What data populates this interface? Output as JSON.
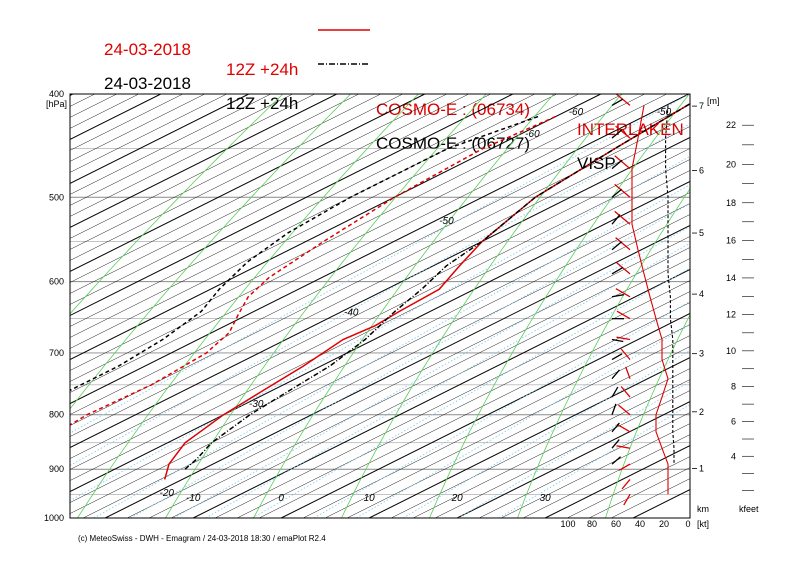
{
  "titles": {
    "red": {
      "date": "24-03-2018",
      "run": "12Z +24h",
      "model": "COSMO-E : (06734)",
      "station": "INTERLAKEN",
      "color": "#e00000",
      "style": "solid"
    },
    "black": {
      "date": "24-03-2018",
      "run": "12Z +24h",
      "model": "COSMO-E : (06727)",
      "station": "VISP",
      "color": "#000000",
      "style": "dash-dot"
    }
  },
  "credit": "(c) MeteoSwiss - DWH - Emagram / 24-03-2018  18:30 / emaPlot R2.4",
  "chart_data": {
    "type": "line",
    "chart_kind": "emagram",
    "y_axis": {
      "quantity": "pressure",
      "unit_label": "[hPa]",
      "scale": "log",
      "range": [
        1000,
        400
      ],
      "ticks": [
        400,
        500,
        600,
        700,
        800,
        900,
        1000
      ],
      "tick_labels": [
        "400",
        "500",
        "600",
        "700",
        "800",
        "900",
        "1000"
      ]
    },
    "x_axis": {
      "quantity": "temperature",
      "range": [
        -24,
        22
      ],
      "bottom_labels": [
        -10,
        0,
        10,
        20,
        30
      ]
    },
    "isotherm_labels": [
      {
        "t": -60,
        "p": 415
      },
      {
        "t": -50,
        "p": 415
      },
      {
        "t": -40,
        "p": 415
      },
      {
        "t": -30,
        "p": 415
      },
      {
        "t": -20,
        "p": 415
      },
      {
        "t": -60,
        "p": 435
      },
      {
        "t": -50,
        "p": 525
      },
      {
        "t": -40,
        "p": 640
      },
      {
        "t": -30,
        "p": 780
      },
      {
        "t": -20,
        "p": 945
      },
      {
        "t": 10,
        "p": 475
      },
      {
        "t": 20,
        "p": 590
      },
      {
        "t": 30,
        "p": 690
      }
    ],
    "height_km_axis": {
      "ticks": [
        1,
        2,
        3,
        4,
        5,
        6,
        7
      ],
      "label": "km",
      "unit": "[m]"
    },
    "height_kfeet_axis": {
      "ticks": [
        4,
        6,
        8,
        10,
        12,
        14,
        16,
        18,
        20,
        22
      ],
      "label": "kfeet"
    },
    "wind_speed_axis": {
      "ticks": [
        100,
        80,
        60,
        40,
        20,
        0
      ],
      "unit": "[kt]"
    },
    "series": [
      {
        "name": "INTERLAKEN",
        "role": "temperature",
        "color": "#e00000",
        "style": "solid",
        "points": [
          [
            -48,
            400
          ],
          [
            -46,
            450
          ],
          [
            -44,
            500
          ],
          [
            -40,
            550
          ],
          [
            -37,
            580
          ],
          [
            -34,
            610
          ],
          [
            -33.5,
            640
          ],
          [
            -33,
            660
          ],
          [
            -33.5,
            680
          ],
          [
            -32,
            720
          ],
          [
            -31,
            760
          ],
          [
            -30,
            800
          ],
          [
            -28,
            850
          ],
          [
            -25,
            890
          ],
          [
            -22,
            920
          ]
        ]
      },
      {
        "name": "INTERLAKEN",
        "role": "dewpoint",
        "color": "#e00000",
        "style": "dashed",
        "points": [
          [
            -60,
            420
          ],
          [
            -61,
            450
          ],
          [
            -60,
            500
          ],
          [
            -58,
            550
          ],
          [
            -56,
            595
          ],
          [
            -54,
            620
          ],
          [
            -51,
            645
          ],
          [
            -48,
            670
          ],
          [
            -46,
            700
          ],
          [
            -45,
            750
          ],
          [
            -45.5,
            800
          ],
          [
            -44.5,
            850
          ],
          [
            -44,
            880
          ],
          [
            -43,
            900
          ]
        ]
      },
      {
        "name": "VISP",
        "role": "temperature",
        "color": "#000000",
        "style": "dash-dot",
        "points": [
          [
            -48,
            400
          ],
          [
            -46,
            450
          ],
          [
            -44,
            500
          ],
          [
            -40,
            550
          ],
          [
            -38.5,
            580
          ],
          [
            -36,
            610
          ],
          [
            -34,
            640
          ],
          [
            -31,
            680
          ],
          [
            -29,
            720
          ],
          [
            -28,
            760
          ],
          [
            -27,
            800
          ],
          [
            -25,
            850
          ],
          [
            -23,
            880
          ],
          [
            -22,
            900
          ]
        ]
      },
      {
        "name": "VISP",
        "role": "dewpoint",
        "color": "#000000",
        "style": "dashed",
        "points": [
          [
            -62,
            420
          ],
          [
            -65,
            450
          ],
          [
            -65,
            500
          ],
          [
            -64,
            540
          ],
          [
            -62,
            575
          ],
          [
            -59,
            610
          ],
          [
            -56,
            640
          ],
          [
            -54,
            680
          ],
          [
            -53,
            720
          ],
          [
            -53,
            760
          ],
          [
            -54,
            800
          ],
          [
            -51,
            840
          ],
          [
            -50,
            870
          ],
          [
            -49,
            900
          ]
        ]
      }
    ],
    "wind_profiles": [
      {
        "name": "INTERLAKEN",
        "color": "#e00000",
        "points": [
          {
            "p": 410,
            "dir": 310,
            "kt": 30
          },
          {
            "p": 440,
            "dir": 310,
            "kt": 35
          },
          {
            "p": 470,
            "dir": 310,
            "kt": 40
          },
          {
            "p": 500,
            "dir": 310,
            "kt": 40
          },
          {
            "p": 530,
            "dir": 310,
            "kt": 40
          },
          {
            "p": 560,
            "dir": 310,
            "kt": 35
          },
          {
            "p": 590,
            "dir": 310,
            "kt": 30
          },
          {
            "p": 620,
            "dir": 300,
            "kt": 25
          },
          {
            "p": 650,
            "dir": 300,
            "kt": 20
          },
          {
            "p": 680,
            "dir": 280,
            "kt": 15
          },
          {
            "p": 710,
            "dir": 320,
            "kt": 15
          },
          {
            "p": 740,
            "dir": 340,
            "kt": 10
          },
          {
            "p": 770,
            "dir": 320,
            "kt": 15
          },
          {
            "p": 800,
            "dir": 310,
            "kt": 20
          },
          {
            "p": 830,
            "dir": 300,
            "kt": 20
          },
          {
            "p": 860,
            "dir": 280,
            "kt": 15
          },
          {
            "p": 890,
            "dir": 240,
            "kt": 10
          },
          {
            "p": 920,
            "dir": 220,
            "kt": 10
          },
          {
            "p": 950,
            "dir": 210,
            "kt": 10
          }
        ]
      },
      {
        "name": "VISP",
        "color": "#000000",
        "points": [
          {
            "p": 410,
            "dir": 60,
            "kt": 10
          },
          {
            "p": 440,
            "dir": 50,
            "kt": 12
          },
          {
            "p": 470,
            "dir": 50,
            "kt": 12
          },
          {
            "p": 500,
            "dir": 50,
            "kt": 10
          },
          {
            "p": 530,
            "dir": 40,
            "kt": 10
          },
          {
            "p": 560,
            "dir": 50,
            "kt": 10
          },
          {
            "p": 590,
            "dir": 60,
            "kt": 10
          },
          {
            "p": 620,
            "dir": 80,
            "kt": 8
          },
          {
            "p": 650,
            "dir": 90,
            "kt": 8
          },
          {
            "p": 680,
            "dir": 100,
            "kt": 6
          },
          {
            "p": 710,
            "dir": 60,
            "kt": 6
          },
          {
            "p": 740,
            "dir": 40,
            "kt": 6
          },
          {
            "p": 770,
            "dir": 30,
            "kt": 6
          },
          {
            "p": 800,
            "dir": 20,
            "kt": 6
          },
          {
            "p": 830,
            "dir": 40,
            "kt": 6
          },
          {
            "p": 860,
            "dir": 40,
            "kt": 5
          },
          {
            "p": 890,
            "dir": 50,
            "kt": 5
          }
        ]
      }
    ],
    "colors": {
      "isotherm": "#000000",
      "isotherm_emph": "#000000",
      "dry_adiabat": "#58d058",
      "mixing_ratio": "#87ceeb",
      "isobar": "#8a8a8a",
      "frame": "#000000"
    },
    "grid": true
  }
}
